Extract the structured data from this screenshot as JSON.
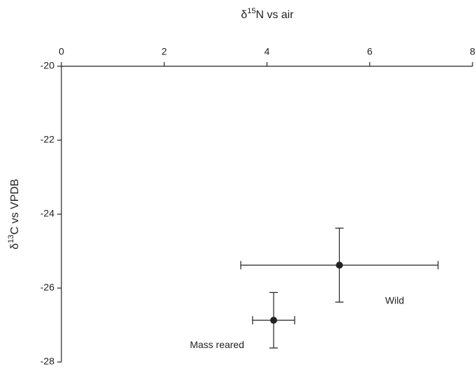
{
  "chart_data": {
    "type": "scatter",
    "xlabel": [
      "δ",
      "15",
      "N vs air"
    ],
    "ylabel": [
      "δ",
      "13",
      "C vs VPDB"
    ],
    "xlim": [
      0,
      8
    ],
    "xticks": [
      0,
      2,
      4,
      6,
      8
    ],
    "ylim": [
      -28,
      -20
    ],
    "yticks": [
      -20,
      -22,
      -24,
      -26,
      -28
    ],
    "x_axis_position": "top",
    "color": "#222222",
    "x": [
      5.41,
      4.13
    ],
    "values": [
      -25.38,
      -26.87
    ],
    "xerr": [
      1.92,
      0.41
    ],
    "yerr": [
      1.0,
      0.75
    ],
    "annotations": [
      {
        "text": "Wild",
        "x": 6.3,
        "y": -26.35
      },
      {
        "text": "Mass reared",
        "x": 2.5,
        "y": -27.55
      }
    ]
  }
}
